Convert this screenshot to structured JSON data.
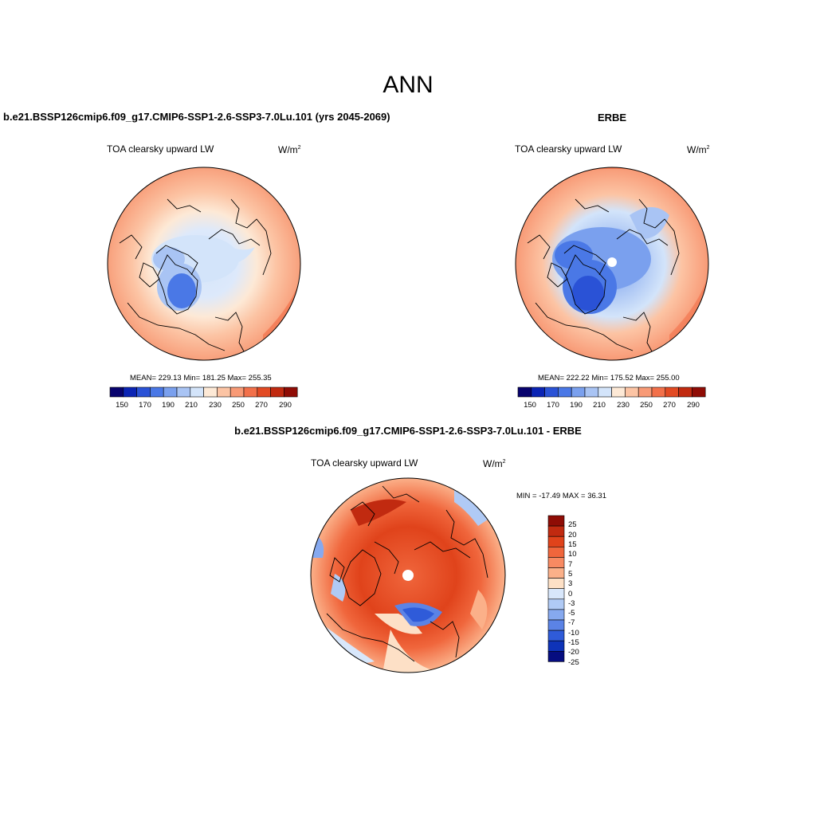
{
  "main_title": "ANN",
  "panels": [
    {
      "id": "model",
      "title": "b.e21.BSSP126cmip6.f09_g17.CMIP6-SSP1-2.6-SSP3-7.0Lu.101 (yrs 2045-2069)",
      "label": "TOA clearsky upward LW",
      "units": "W/m",
      "units_exp": "2",
      "stats": "MEAN= 229.13  Min= 181.25  Max= 255.35",
      "colorbar_ticks": [
        "150",
        "170",
        "190",
        "210",
        "230",
        "250",
        "270",
        "290"
      ]
    },
    {
      "id": "obs",
      "title": "ERBE",
      "label": "TOA clearsky upward LW",
      "units": "W/m",
      "units_exp": "2",
      "stats": "MEAN= 222.22  Min= 175.52  Max= 255.00",
      "colorbar_ticks": [
        "150",
        "170",
        "190",
        "210",
        "230",
        "250",
        "270",
        "290"
      ]
    },
    {
      "id": "diff",
      "title": "b.e21.BSSP126cmip6.f09_g17.CMIP6-SSP1-2.6-SSP3-7.0Lu.101 - ERBE",
      "label": "TOA clearsky upward LW",
      "units": "W/m",
      "units_exp": "2",
      "stats": "MIN = -17.49 MAX =  36.31",
      "colorbar_ticks": [
        "25",
        "20",
        "15",
        "10",
        "7",
        "5",
        "3",
        "0",
        "-3",
        "-5",
        "-7",
        "-10",
        "-15",
        "-20",
        "-25"
      ]
    }
  ],
  "colors": {
    "abs_scale": [
      "#08036e",
      "#0b24b4",
      "#2a52d6",
      "#4a78e6",
      "#7aa0ee",
      "#a9c4f4",
      "#d3e4fa",
      "#fde9d6",
      "#fcc4a4",
      "#f89a76",
      "#f2704a",
      "#e24a23",
      "#c12a10",
      "#8f0c05"
    ],
    "diff_scale": [
      "#8f0c05",
      "#c12a10",
      "#e0431b",
      "#f0663c",
      "#f88a62",
      "#fbb089",
      "#fde0c6",
      "#d8e7fb",
      "#b0caf5",
      "#86a9ef",
      "#5b83e6",
      "#2f5bd9",
      "#0e33b8",
      "#060d80"
    ]
  }
}
